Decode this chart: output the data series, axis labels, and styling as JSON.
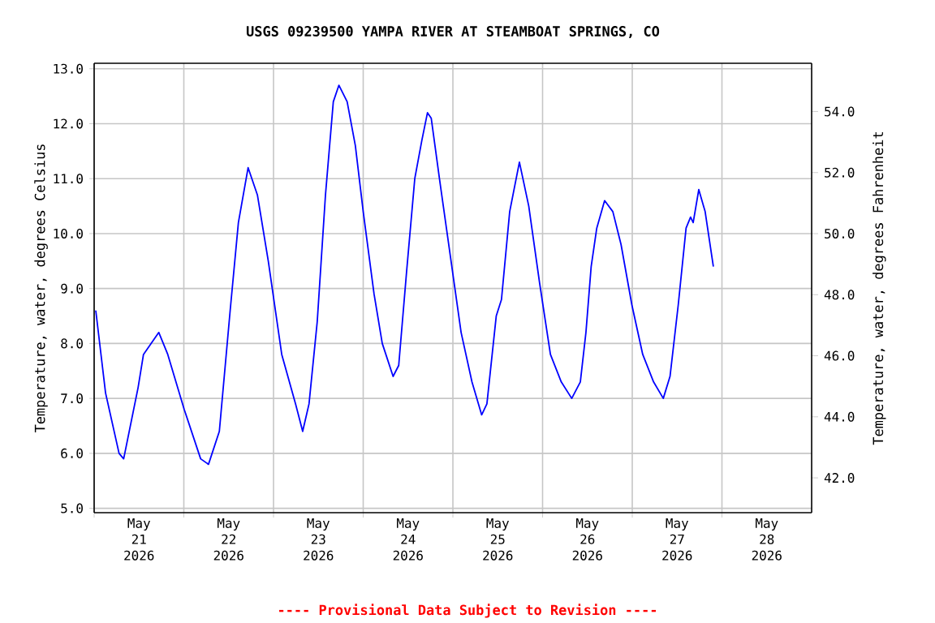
{
  "chart_data": {
    "type": "line",
    "title": "USGS 09239500 YAMPA RIVER AT STEAMBOAT SPRINGS, CO",
    "ylabel": "Temperature, water, degrees Celsius",
    "y2label": "Temperature, water, degrees Fahrenheit",
    "annotations": [
      "---- Provisional Data Subject to Revision ----"
    ],
    "grid": true,
    "xlim": [
      "2026-05-21T00:00",
      "2026-05-29T00:00"
    ],
    "xticks": [
      {
        "value": "2026-05-21T00:00",
        "label": null
      },
      {
        "value": "2026-05-22T00:00",
        "label": null
      },
      {
        "value": "2026-05-23T00:00",
        "label": null
      },
      {
        "value": "2026-05-24T00:00",
        "label": null
      },
      {
        "value": "2026-05-25T00:00",
        "label": null
      },
      {
        "value": "2026-05-26T00:00",
        "label": null
      },
      {
        "value": "2026-05-27T00:00",
        "label": null
      },
      {
        "value": "2026-05-28T00:00",
        "label": null
      },
      {
        "value": "2026-05-21T12:00",
        "label": "May 21 2026"
      },
      {
        "value": "2026-05-22T12:00",
        "label": "May 22 2026"
      },
      {
        "value": "2026-05-23T12:00",
        "label": "May 23 2026"
      },
      {
        "value": "2026-05-24T12:00",
        "label": "May 24 2026"
      },
      {
        "value": "2026-05-25T12:00",
        "label": "May 25 2026"
      },
      {
        "value": "2026-05-26T12:00",
        "label": "May 26 2026"
      },
      {
        "value": "2026-05-27T12:00",
        "label": "May 27 2026"
      },
      {
        "value": "2026-05-28T12:00",
        "label": "May 28 2026"
      }
    ],
    "ylim": [
      4.92,
      13.1
    ],
    "yticks": [
      {
        "value": 5,
        "label": "5.0"
      },
      {
        "value": 6,
        "label": "6.0"
      },
      {
        "value": 7,
        "label": "7.0"
      },
      {
        "value": 8,
        "label": "8.0"
      },
      {
        "value": 9,
        "label": "9.0"
      },
      {
        "value": 10,
        "label": "10.0"
      },
      {
        "value": 11,
        "label": "11.0"
      },
      {
        "value": 12,
        "label": "12.0"
      },
      {
        "value": 13,
        "label": "13.0"
      }
    ],
    "y2lim": [
      40.86,
      55.58
    ],
    "y2ticks": [
      {
        "value": 42,
        "label": "42.0"
      },
      {
        "value": 44,
        "label": "44.0"
      },
      {
        "value": 46,
        "label": "46.0"
      },
      {
        "value": 48,
        "label": "48.0"
      },
      {
        "value": 50,
        "label": "50.0"
      },
      {
        "value": 52,
        "label": "52.0"
      },
      {
        "value": 54,
        "label": "54.0"
      }
    ],
    "series": [
      {
        "color": "#0000ff",
        "x": [
          "2026-05-21T00:26",
          "2026-05-21T03:03",
          "2026-05-21T06:40",
          "2026-05-21T07:54",
          "2026-05-21T11:46",
          "2026-05-21T13:12",
          "2026-05-21T17:18",
          "2026-05-21T19:42",
          "2026-05-22T00:06",
          "2026-05-22T04:30",
          "2026-05-22T06:36",
          "2026-05-22T09:30",
          "2026-05-22T12:24",
          "2026-05-22T14:36",
          "2026-05-22T17:12",
          "2026-05-22T19:42",
          "2026-05-22T22:36",
          "2026-05-23T02:12",
          "2026-05-23T05:54",
          "2026-05-23T07:48",
          "2026-05-23T09:30",
          "2026-05-23T11:42",
          "2026-05-23T13:54",
          "2026-05-23T16:00",
          "2026-05-23T17:30",
          "2026-05-23T19:42",
          "2026-05-23T21:54",
          "2026-05-24T00:00",
          "2026-05-24T02:54",
          "2026-05-24T05:06",
          "2026-05-24T08:00",
          "2026-05-24T09:30",
          "2026-05-24T11:36",
          "2026-05-24T13:48",
          "2026-05-24T15:42",
          "2026-05-24T17:12",
          "2026-05-24T18:12",
          "2026-05-24T20:24",
          "2026-05-24T23:18",
          "2026-05-25T02:12",
          "2026-05-25T05:06",
          "2026-05-25T07:42",
          "2026-05-25T09:06",
          "2026-05-25T11:36",
          "2026-05-25T13:00",
          "2026-05-25T15:12",
          "2026-05-25T17:48",
          "2026-05-25T20:18",
          "2026-05-25T23:12",
          "2026-05-26T02:06",
          "2026-05-26T05:00",
          "2026-05-26T07:48",
          "2026-05-26T10:06",
          "2026-05-26T11:36",
          "2026-05-26T13:00",
          "2026-05-26T14:30",
          "2026-05-26T16:36",
          "2026-05-26T18:48",
          "2026-05-26T21:00",
          "2026-05-26T23:54",
          "2026-05-27T02:48",
          "2026-05-27T05:42",
          "2026-05-27T08:18",
          "2026-05-27T10:06",
          "2026-05-27T12:18",
          "2026-05-27T14:24",
          "2026-05-27T15:36",
          "2026-05-27T16:18",
          "2026-05-27T17:48",
          "2026-05-27T19:30",
          "2026-05-27T21:42"
        ],
        "values": [
          8.6,
          7.1,
          6.0,
          5.9,
          7.2,
          7.8,
          8.2,
          7.8,
          6.8,
          5.9,
          5.8,
          6.4,
          8.6,
          10.2,
          11.2,
          10.7,
          9.5,
          7.8,
          6.9,
          6.4,
          6.9,
          8.4,
          10.7,
          12.4,
          12.7,
          12.4,
          11.6,
          10.4,
          8.9,
          8.0,
          7.4,
          7.6,
          9.3,
          11.0,
          11.7,
          12.2,
          12.1,
          11.0,
          9.6,
          8.2,
          7.3,
          6.7,
          6.9,
          8.5,
          8.8,
          10.4,
          11.3,
          10.5,
          9.1,
          7.8,
          7.3,
          7.0,
          7.3,
          8.2,
          9.4,
          10.1,
          10.6,
          10.4,
          9.8,
          8.7,
          7.8,
          7.3,
          7.0,
          7.4,
          8.7,
          10.1,
          10.3,
          10.2,
          10.8,
          10.4,
          9.4
        ]
      }
    ]
  }
}
